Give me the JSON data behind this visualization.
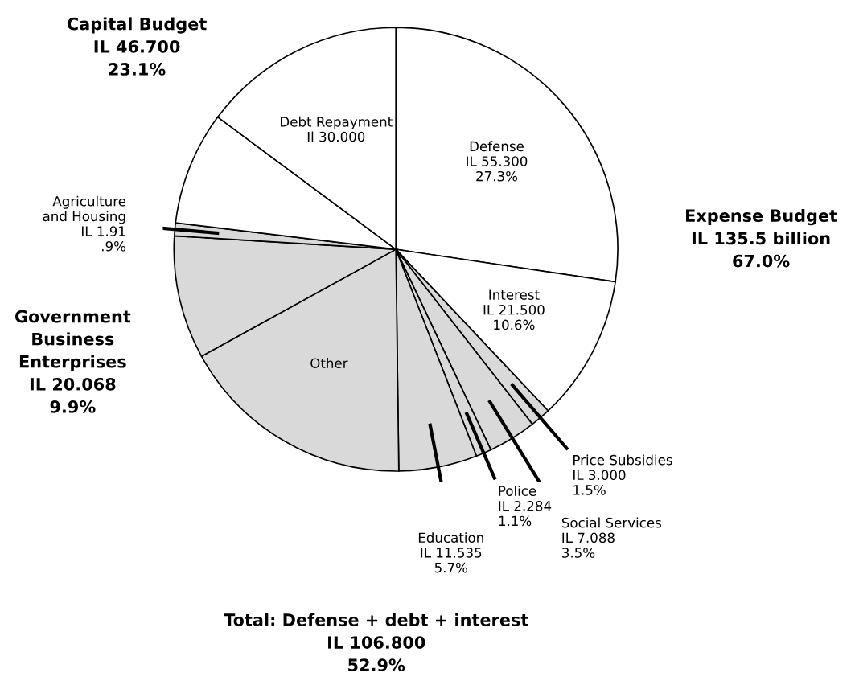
{
  "chart_data": {
    "type": "pie",
    "categories": [
      "Defense",
      "Interest",
      "Price Subsidies",
      "Social Services",
      "Police",
      "Education",
      "Other",
      null,
      "Agriculture\nand Housing",
      null,
      "Debt Repayment"
    ],
    "values": [
      55.3,
      21.5,
      3.0,
      7.088,
      2.284,
      11.535,
      34.793,
      18.158,
      1.91,
      16.7,
      30.0
    ],
    "value_labels": [
      "IL 55.300\n27.3%",
      "IL 21.500\n10.6%",
      "IL 3.000\n1.5%",
      "IL 7.088\n3.5%",
      "IL 2.284\n1.1%",
      "IL 11.535\n5.7%",
      null,
      null,
      "IL 1.91\n.9%",
      null,
      "Il 30.000"
    ],
    "colors": [
      "#ffffff",
      "#ffffff",
      "#d9d9d9",
      "#d9d9d9",
      "#d9d9d9",
      "#d9d9d9",
      "#d9d9d9",
      "#d9d9d9",
      "#d9d9d9",
      "#ffffff",
      "#ffffff"
    ],
    "annotations": [
      "Capital Budget\nIL 46.700\n23.1%",
      "Expense Budget\nIL 135.5 billion\n67.0%",
      "Government\nBusiness\nEnterprises\nIL 20.068\n9.9%",
      "Total: Defense + debt + interest\nIL 106.800\n52.9%"
    ],
    "legend": false
  }
}
